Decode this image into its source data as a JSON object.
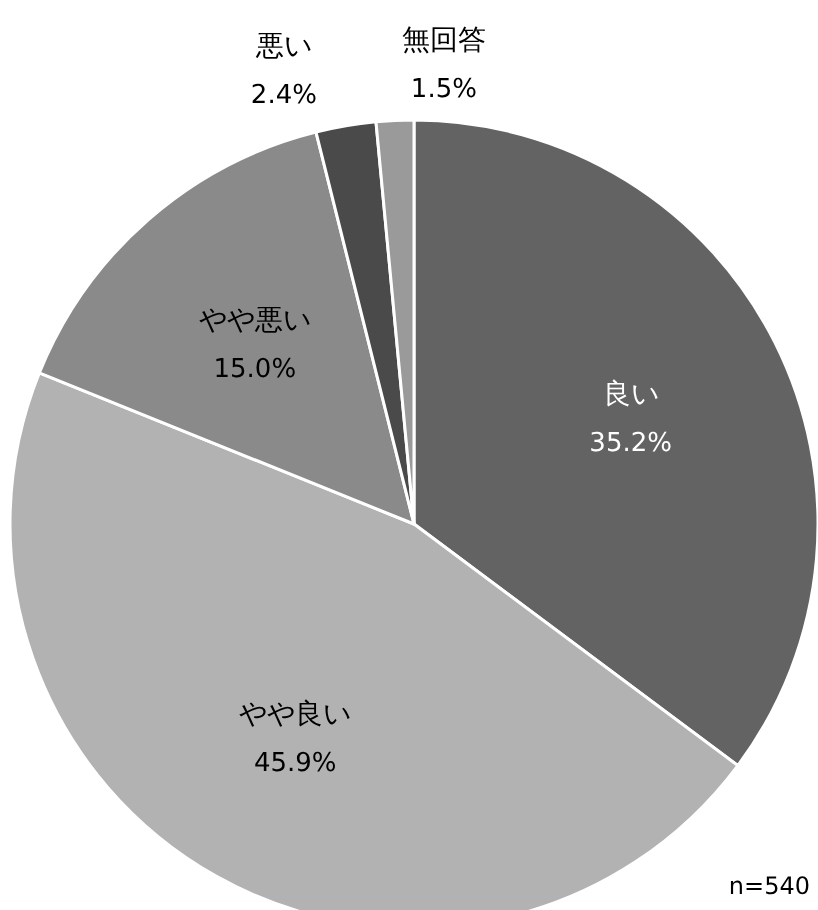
{
  "chart_data": {
    "type": "pie",
    "categories": [
      "良い",
      "やや良い",
      "やや悪い",
      "悪い",
      "無回答"
    ],
    "values": [
      35.2,
      45.9,
      15.0,
      2.4,
      1.5
    ],
    "value_labels": [
      "35.2%",
      "45.9%",
      "15.0%",
      "2.4%",
      "1.5%"
    ],
    "colors": [
      "#636363",
      "#b2b2b2",
      "#8a8a8a",
      "#4a4a4a",
      "#9a9a9a"
    ],
    "annotations": [
      "n=540"
    ]
  }
}
